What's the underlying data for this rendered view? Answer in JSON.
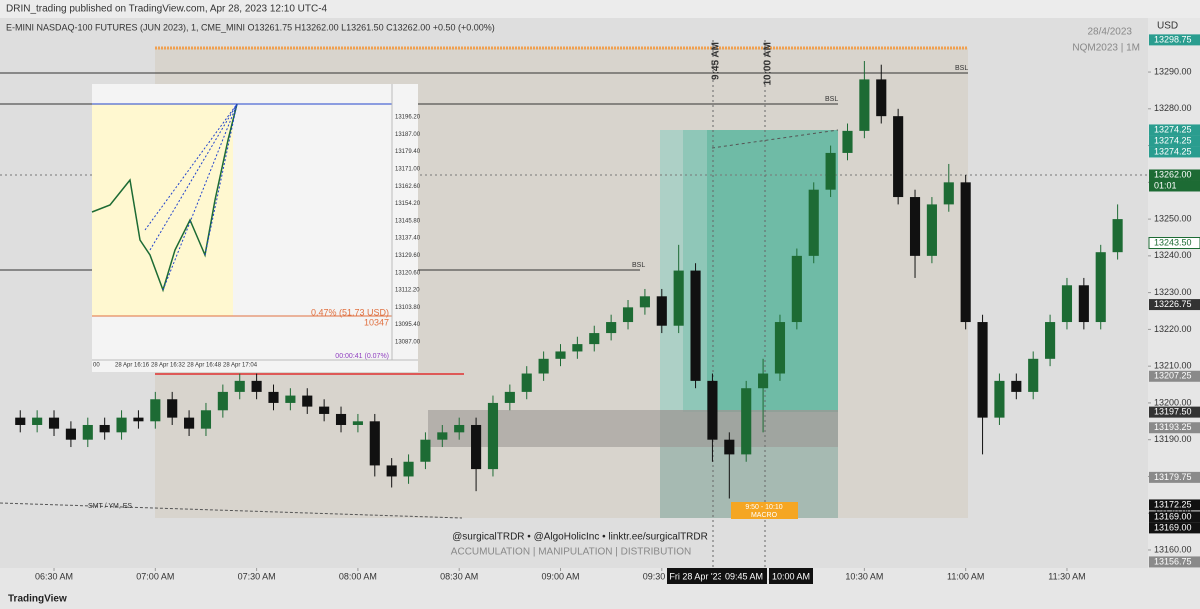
{
  "page": {
    "header": "DRIN_trading published on TradingView.com, Apr 28, 2023 12:10 UTC-4",
    "date": "28/4/2023",
    "symbol_short": "NQM2023 | 1M",
    "currency": "USD",
    "vline_labels": [
      "9:45 AM",
      "10:00 AM"
    ],
    "bsl": [
      "BSL",
      "BSL",
      "BSL"
    ],
    "smt": "SMT / YM, ES",
    "macro_time": "9:50 - 10:10",
    "macro": "MACRO",
    "watermark": "@surgicalTRDR • @AlgoHolicInc • linktr.ee/surgicalTRDR",
    "phases": "ACCUMULATION | MANIPULATION | DISTRIBUTION",
    "crosshair_date": "Fri 28 Apr '23",
    "crosshair_times": [
      "09:45 AM",
      "10:00 AM"
    ],
    "countdown": "01:01",
    "footer": "TradingView",
    "inset": {
      "axis": [
        "13196.20",
        "13187.00",
        "13179.40",
        "13171.00",
        "13162.60",
        "13154.20",
        "13145.80",
        "13137.40",
        "13129.60",
        "13120.60",
        "13112.20",
        "13103.80",
        "13095.40",
        "13087.00"
      ],
      "times": [
        "00",
        "28 Apr 16:16",
        "28 Apr 16:32",
        "28 Apr 16:48",
        "28 Apr 17:04"
      ],
      "measure": "0.47% (51.73 USD)",
      "bars": "10347",
      "duration": "00:00:41 (0.07%)"
    }
  },
  "chart_data": {
    "type": "candlestick",
    "title": "E-MINI NASDAQ-100 FUTURES (JUN 2023), 1, CME_MINI  O13261.75  H13262.00  L13261.50  C13262.00  +0.50 (+0.00%)",
    "up_color": "#1d6b34",
    "down_color": "#111111",
    "grid": false,
    "x": [
      380,
      385,
      390,
      395,
      400,
      405,
      410,
      415,
      420,
      425,
      430,
      435,
      440,
      445,
      450,
      455,
      460,
      465,
      470,
      475,
      480,
      485,
      490,
      495,
      500,
      505,
      510,
      515,
      520,
      525,
      530,
      535,
      540,
      545,
      550,
      555,
      560,
      565,
      570,
      575,
      580,
      585,
      590,
      595,
      600,
      605,
      610,
      615,
      620,
      625,
      630,
      635,
      640,
      645,
      650,
      655,
      660,
      665,
      670,
      675,
      680,
      685,
      690,
      695,
      700,
      705
    ],
    "open": [
      13196,
      13194,
      13196,
      13193,
      13190,
      13194,
      13192,
      13196,
      13195,
      13201,
      13196,
      13193,
      13198,
      13203,
      13206,
      13203,
      13200,
      13202,
      13199,
      13197,
      13194,
      13195,
      13183,
      13180,
      13184,
      13190,
      13192,
      13194,
      13182,
      13200,
      13203,
      13208,
      13212,
      13214,
      13216,
      13219,
      13222,
      13226,
      13229,
      13221,
      13236,
      13206,
      13190,
      13186,
      13204,
      13208,
      13222,
      13240,
      13258,
      13268,
      13274,
      13288,
      13278,
      13256,
      13240,
      13254,
      13260,
      13222,
      13196,
      13206,
      13203,
      13212,
      13222,
      13232,
      13222,
      13241
    ],
    "high": [
      13198,
      13198,
      13198,
      13195,
      13196,
      13196,
      13198,
      13198,
      13203,
      13203,
      13198,
      13200,
      13205,
      13208,
      13208,
      13205,
      13204,
      13204,
      13201,
      13199,
      13197,
      13197,
      13185,
      13186,
      13192,
      13194,
      13196,
      13196,
      13202,
      13205,
      13210,
      13214,
      13216,
      13218,
      13221,
      13224,
      13228,
      13231,
      13231,
      13243,
      13238,
      13208,
      13192,
      13206,
      13212,
      13224,
      13242,
      13260,
      13270,
      13276,
      13293,
      13292,
      13280,
      13258,
      13256,
      13265,
      13262,
      13224,
      13208,
      13208,
      13214,
      13224,
      13234,
      13234,
      13243,
      13254
    ],
    "low": [
      13192,
      13192,
      13191,
      13188,
      13188,
      13190,
      13190,
      13193,
      13193,
      13194,
      13191,
      13191,
      13196,
      13201,
      13201,
      13198,
      13198,
      13197,
      13195,
      13192,
      13192,
      13180,
      13177,
      13178,
      13182,
      13188,
      13190,
      13176,
      13180,
      13198,
      13201,
      13206,
      13210,
      13212,
      13214,
      13217,
      13220,
      13224,
      13219,
      13219,
      13204,
      13184,
      13174,
      13184,
      13192,
      13206,
      13220,
      13238,
      13256,
      13266,
      13272,
      13276,
      13254,
      13234,
      13238,
      13252,
      13220,
      13186,
      13194,
      13201,
      13201,
      13210,
      13220,
      13220,
      13220,
      13239
    ],
    "close": [
      13194,
      13196,
      13193,
      13190,
      13194,
      13192,
      13196,
      13195,
      13201,
      13196,
      13193,
      13198,
      13203,
      13206,
      13203,
      13200,
      13202,
      13199,
      13197,
      13194,
      13195,
      13183,
      13180,
      13184,
      13190,
      13192,
      13194,
      13182,
      13200,
      13203,
      13208,
      13212,
      13214,
      13216,
      13219,
      13222,
      13226,
      13229,
      13221,
      13236,
      13206,
      13190,
      13186,
      13204,
      13208,
      13222,
      13240,
      13258,
      13268,
      13274,
      13288,
      13278,
      13256,
      13240,
      13254,
      13260,
      13222,
      13196,
      13206,
      13203,
      13212,
      13222,
      13232,
      13222,
      13241,
      13250
    ],
    "xlim": [
      374,
      714
    ],
    "xticks": [
      {
        "value": 390,
        "label": "06:30 AM"
      },
      {
        "value": 420,
        "label": "07:00 AM"
      },
      {
        "value": 450,
        "label": "07:30 AM"
      },
      {
        "value": 480,
        "label": "08:00 AM"
      },
      {
        "value": 510,
        "label": "08:30 AM"
      },
      {
        "value": 540,
        "label": "09:00 AM"
      },
      {
        "value": 570,
        "label": "09:30 AM"
      },
      {
        "value": 600,
        "label": "10:00 AM"
      },
      {
        "value": 630,
        "label": "10:30 AM"
      },
      {
        "value": 660,
        "label": "11:00 AM"
      },
      {
        "value": 690,
        "label": "11:30 AM"
      }
    ],
    "ylim": [
      13155.1,
      13304.7
    ],
    "yticks": [
      {
        "value": 13160,
        "label": "13160.00"
      },
      {
        "value": 13170,
        "label": "13170.00"
      },
      {
        "value": 13180,
        "label": "13180.00"
      },
      {
        "value": 13190,
        "label": "13190.00"
      },
      {
        "value": 13200,
        "label": "13200.00"
      },
      {
        "value": 13210,
        "label": "13210.00"
      },
      {
        "value": 13220,
        "label": "13220.00"
      },
      {
        "value": 13230,
        "label": "13230.00"
      },
      {
        "value": 13240,
        "label": "13240.00"
      },
      {
        "value": 13250,
        "label": "13250.00"
      },
      {
        "value": 13260,
        "label": "13260.00"
      },
      {
        "value": 13270,
        "label": "13270.00"
      },
      {
        "value": 13280,
        "label": "13280.00"
      },
      {
        "value": 13290,
        "label": "13290.00"
      }
    ],
    "price_levels": [
      {
        "value": 13298.75,
        "label": "13298.75",
        "color": "#2a9d8f"
      },
      {
        "value": 13274.25,
        "label": "13274.25",
        "color": "#2a9d8f"
      },
      {
        "value": 13274.25,
        "label": "13274.25",
        "color": "#2a9d8f"
      },
      {
        "value": 13274.25,
        "label": "13274.25",
        "color": "#2a9d8f"
      },
      {
        "value": 13262,
        "label": "13262.00",
        "color": "#1d6b34"
      },
      {
        "value": 13243.5,
        "label": "13243.50",
        "color": "#ffffff"
      },
      {
        "value": 13226.75,
        "label": "13226.75",
        "color": "#333333"
      },
      {
        "value": 13207.25,
        "label": "13207.25",
        "color": "#8a8a8a"
      },
      {
        "value": 13197.5,
        "label": "13197.50",
        "color": "#333333"
      },
      {
        "value": 13193.25,
        "label": "13193.25",
        "color": "#8a8a8a"
      },
      {
        "value": 13179.75,
        "label": "13179.75",
        "color": "#8a8a8a"
      },
      {
        "value": 13172.25,
        "label": "13172.25",
        "color": "#111111"
      },
      {
        "value": 13169,
        "label": "13169.00",
        "color": "#111111"
      },
      {
        "value": 13169,
        "label": "13169.00",
        "color": "#111111"
      },
      {
        "value": 13156.75,
        "label": "13156.75",
        "color": "#8a8a8a"
      }
    ]
  }
}
